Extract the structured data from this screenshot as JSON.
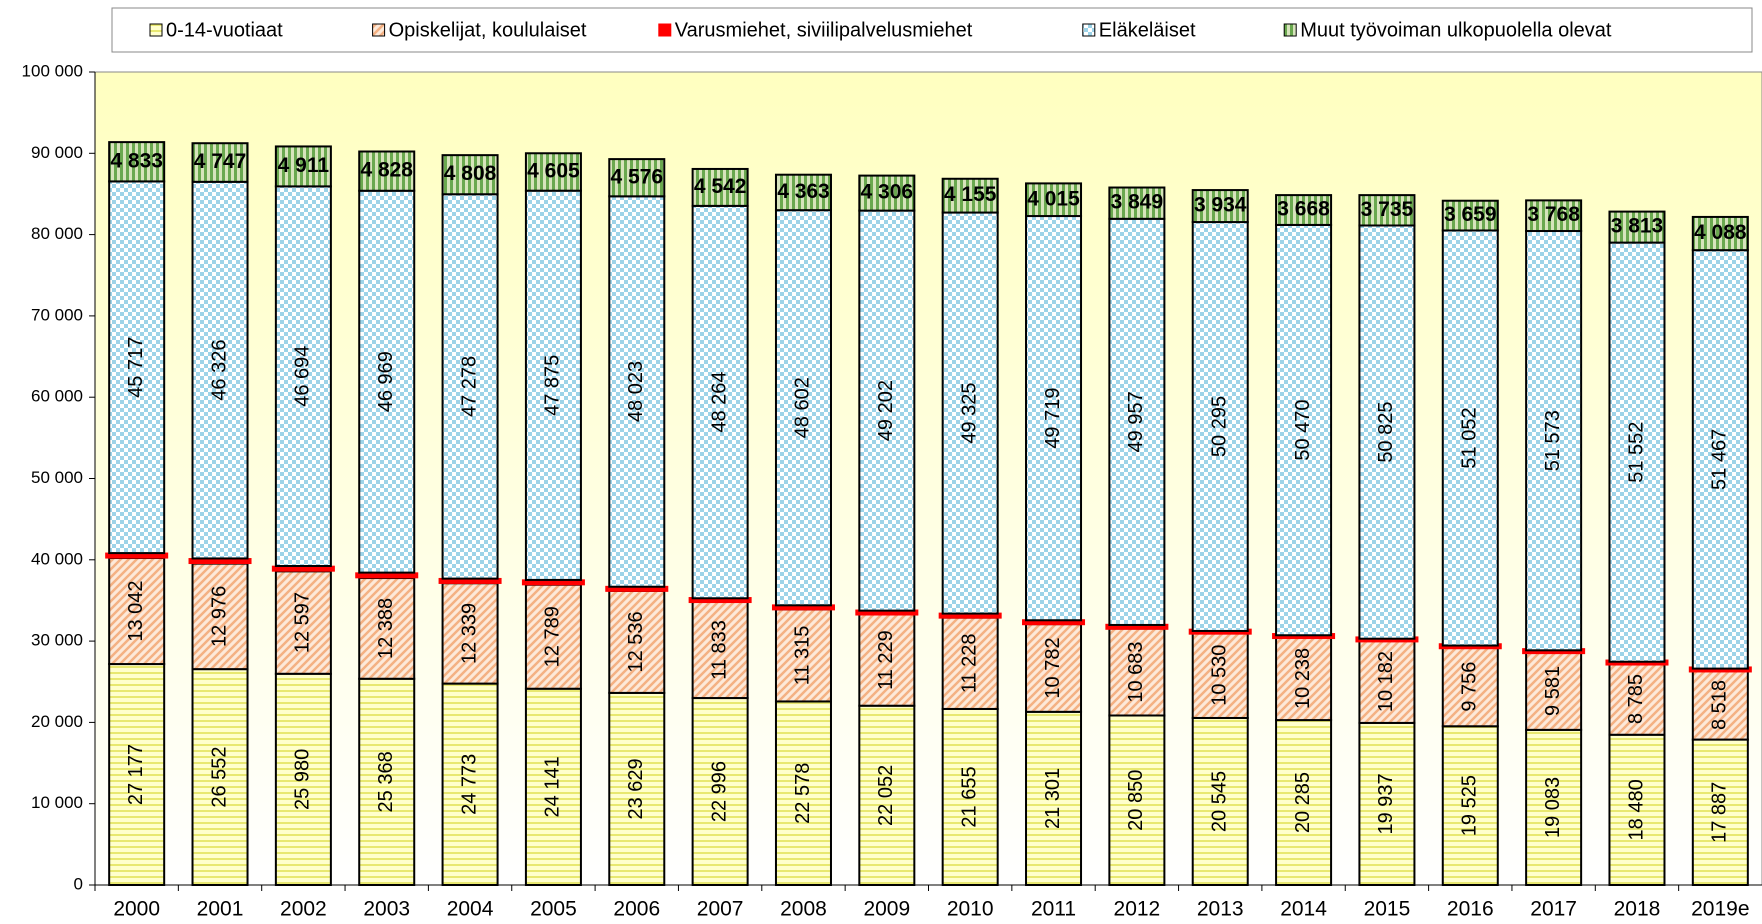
{
  "chart_data": {
    "type": "stacked_bar",
    "categories": [
      "2000",
      "2001",
      "2002",
      "2003",
      "2004",
      "2005",
      "2006",
      "2007",
      "2008",
      "2009",
      "2010",
      "2011",
      "2012",
      "2013",
      "2014",
      "2015",
      "2016",
      "2017",
      "2018",
      "2019e"
    ],
    "series": [
      {
        "name": "0-14-vuotiaat",
        "color": "#ffff99",
        "values": [
          27177,
          26552,
          25980,
          25368,
          24773,
          24141,
          23629,
          22996,
          22578,
          22052,
          21655,
          21301,
          20850,
          20545,
          20285,
          19937,
          19525,
          19083,
          18480,
          17887
        ],
        "value_labels": [
          "27 177",
          "26 552",
          "25 980",
          "25 368",
          "24 773",
          "24 141",
          "23 629",
          "22 996",
          "22 578",
          "22 052",
          "21 655",
          "21 301",
          "20 850",
          "20 545",
          "20 285",
          "19 937",
          "19 525",
          "19 083",
          "18 480",
          "17 887"
        ]
      },
      {
        "name": "Opiskelijat, koululaiset",
        "color": "#fcd5b4",
        "values": [
          13042,
          12976,
          12597,
          12388,
          12339,
          12789,
          12536,
          11833,
          11315,
          11229,
          11228,
          10782,
          10683,
          10530,
          10238,
          10182,
          9756,
          9581,
          8785,
          8518
        ],
        "value_labels": [
          "13 042",
          "12 976",
          "12 597",
          "12 388",
          "12 339",
          "12 789",
          "12 536",
          "11 833",
          "11 315",
          "11 229",
          "11 228",
          "10 782",
          "10 683",
          "10 530",
          "10 238",
          "10 182",
          "9 756",
          "9 581",
          "8 785",
          "8 518"
        ]
      },
      {
        "name": "Varusmiehet, siviilipalvelusmiehet",
        "color": "#ff0000",
        "values": [
          607,
          639,
          662,
          668,
          575,
          595,
          522,
          440,
          509,
          468,
          504,
          481,
          452,
          173,
          197,
          177,
          175,
          204,
          199,
          213
        ]
      },
      {
        "name": "Eläkeläiset",
        "color": "#b7dee8",
        "values": [
          45717,
          46326,
          46694,
          46969,
          47278,
          47875,
          48023,
          48264,
          48602,
          49202,
          49325,
          49719,
          49957,
          50295,
          50470,
          50825,
          51052,
          51573,
          51552,
          51467
        ],
        "value_labels": [
          "45 717",
          "46 326",
          "46 694",
          "46 969",
          "47 278",
          "47 875",
          "48 023",
          "48 264",
          "48 602",
          "49 202",
          "49 325",
          "49 719",
          "49 957",
          "50 295",
          "50 470",
          "50 825",
          "51 052",
          "51 573",
          "51 552",
          "51 467"
        ]
      },
      {
        "name": "Muut työvoiman ulkopuolella olevat",
        "color": "#9bbb59",
        "values": [
          4833,
          4747,
          4911,
          4828,
          4808,
          4605,
          4576,
          4542,
          4363,
          4306,
          4155,
          4015,
          3849,
          3934,
          3668,
          3735,
          3659,
          3768,
          3813,
          4088
        ],
        "value_labels": [
          "4 833",
          "4 747",
          "4 911",
          "4 828",
          "4 808",
          "4 605",
          "4 576",
          "4 542",
          "4 363",
          "4 306",
          "4 155",
          "4 015",
          "3 849",
          "3 934",
          "3 668",
          "3 735",
          "3 659",
          "3 768",
          "3 813",
          "4 088"
        ]
      }
    ],
    "ylim": [
      0,
      100000
    ],
    "yticks": [
      0,
      {
        "value": 10000,
        "label": "10 000"
      },
      {
        "value": 20000,
        "label": "20 000"
      },
      {
        "value": 30000,
        "label": "30 000"
      },
      {
        "value": 40000,
        "label": "40 000"
      },
      {
        "value": 50000,
        "label": "50 000"
      },
      {
        "value": 60000,
        "label": "60 000"
      },
      {
        "value": 70000,
        "label": "70 000"
      },
      {
        "value": 80000,
        "label": "80 000"
      },
      {
        "value": 90000,
        "label": "90 000"
      },
      {
        "value": 100000,
        "label": "100 000"
      }
    ],
    "legend": "top"
  }
}
